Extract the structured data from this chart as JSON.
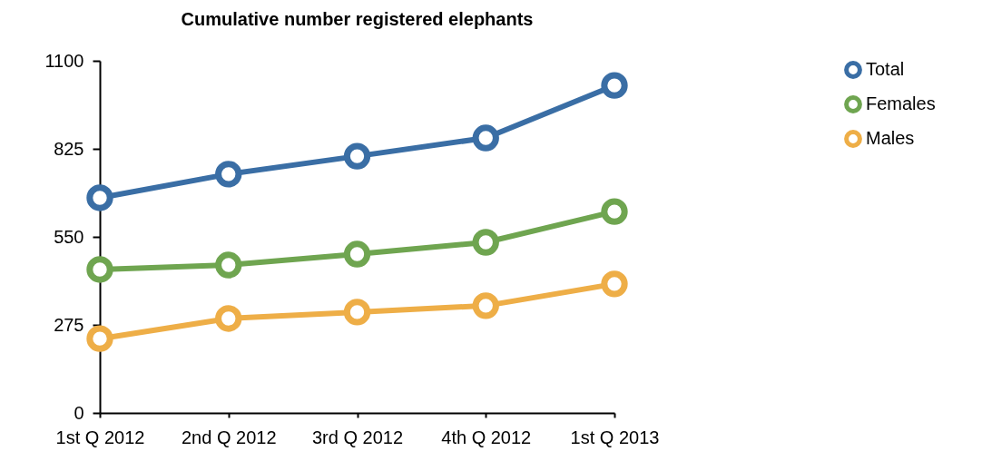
{
  "chart_data": {
    "type": "line",
    "title": "Cumulative number registered elephants",
    "categories": [
      "1st Q 2012",
      "2nd Q 2012",
      "3rd Q 2012",
      "4th Q 2012",
      "1st Q 2013"
    ],
    "series": [
      {
        "name": "Total",
        "color": "#3a6ea5",
        "values": [
          672,
          746,
          802,
          859,
          1023
        ]
      },
      {
        "name": "Females",
        "color": "#6fa550",
        "values": [
          448,
          462,
          496,
          533,
          629
        ]
      },
      {
        "name": "Males",
        "color": "#eeae47",
        "values": [
          232,
          295,
          315,
          335,
          403
        ]
      }
    ],
    "ylim": [
      0,
      1100
    ],
    "yticks": [
      0,
      275,
      550,
      825,
      1100
    ],
    "grid": false,
    "legend": "top right",
    "marker": "circle",
    "line_style": "solid"
  }
}
